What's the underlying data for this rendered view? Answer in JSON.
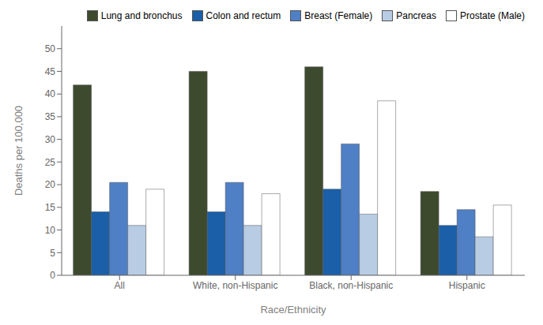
{
  "chart_data": {
    "type": "bar",
    "categories": [
      "All",
      "White, non-Hispanic",
      "Black, non-Hispanic",
      "Hispanic"
    ],
    "series": [
      {
        "name": "Lung and bronchus",
        "values": [
          42,
          45,
          46,
          18.5
        ],
        "color": "#3d4a2e"
      },
      {
        "name": "Colon and rectum",
        "values": [
          14,
          14,
          19,
          11
        ],
        "color": "#1a5fa8"
      },
      {
        "name": "Breast (Female)",
        "values": [
          20.5,
          20.5,
          29,
          14.5
        ],
        "color": "#4f7fc4"
      },
      {
        "name": "Pancreas",
        "values": [
          11,
          11,
          13.5,
          8.5
        ],
        "color": "#b8cce4"
      },
      {
        "name": "Prostate (Male)",
        "values": [
          19,
          18,
          38.5,
          15.5
        ],
        "color": "#ffffff"
      }
    ],
    "ylabel": "Deaths per 100,000",
    "xlabel": "Race/Ethnicity",
    "ylim": [
      0,
      55
    ],
    "yticks": [
      0,
      5,
      10,
      15,
      20,
      25,
      30,
      35,
      40,
      45,
      50
    ],
    "grid": false,
    "legend": "upper right"
  }
}
